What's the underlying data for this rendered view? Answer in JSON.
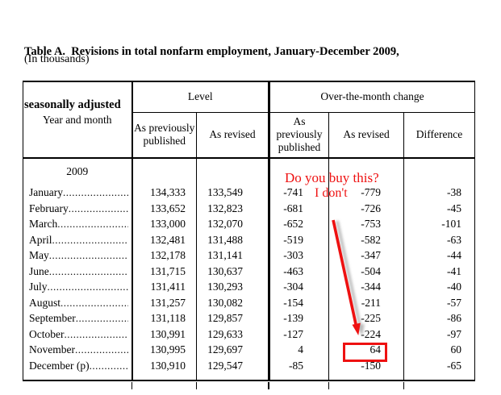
{
  "page": {
    "title_line1": "Table A.  Revisions in total nonfarm employment, January-December 2009,",
    "title_line2": "seasonally adjusted",
    "units_note": "(In thousands)"
  },
  "table": {
    "row_header": "Year and month",
    "groups": {
      "level": "Level",
      "otm": "Over-the-month change"
    },
    "columns": {
      "level_prev": "As previously published",
      "level_rev": "As revised",
      "otm_prev": "As previously published",
      "otm_rev": "As revised",
      "diff": "Difference"
    },
    "year": "2009",
    "rows": [
      {
        "month": "January",
        "level_prev": "134,333",
        "level_rev": "133,549",
        "otm_prev": "-741",
        "otm_rev": "-779",
        "diff": "-38"
      },
      {
        "month": "February",
        "level_prev": "133,652",
        "level_rev": "132,823",
        "otm_prev": "-681",
        "otm_rev": "-726",
        "diff": "-45"
      },
      {
        "month": "March",
        "level_prev": "133,000",
        "level_rev": "132,070",
        "otm_prev": "-652",
        "otm_rev": "-753",
        "diff": "-101"
      },
      {
        "month": "April",
        "level_prev": "132,481",
        "level_rev": "131,488",
        "otm_prev": "-519",
        "otm_rev": "-582",
        "diff": "-63"
      },
      {
        "month": "May",
        "level_prev": "132,178",
        "level_rev": "131,141",
        "otm_prev": "-303",
        "otm_rev": "-347",
        "diff": "-44"
      },
      {
        "month": "June",
        "level_prev": "131,715",
        "level_rev": "130,637",
        "otm_prev": "-463",
        "otm_rev": "-504",
        "diff": "-41"
      },
      {
        "month": "July",
        "level_prev": "131,411",
        "level_rev": "130,293",
        "otm_prev": "-304",
        "otm_rev": "-344",
        "diff": "-40"
      },
      {
        "month": "August",
        "level_prev": "131,257",
        "level_rev": "130,082",
        "otm_prev": "-154",
        "otm_rev": "-211",
        "diff": "-57"
      },
      {
        "month": "September",
        "level_prev": "131,118",
        "level_rev": "129,857",
        "otm_prev": "-139",
        "otm_rev": "-225",
        "diff": "-86"
      },
      {
        "month": "October",
        "level_prev": "130,991",
        "level_rev": "129,633",
        "otm_prev": "-127",
        "otm_rev": "-224",
        "diff": "-97"
      },
      {
        "month": "November",
        "level_prev": "130,995",
        "level_rev": "129,697",
        "otm_prev": "4",
        "otm_rev": "64",
        "diff": "60"
      },
      {
        "month": "December (p)",
        "level_prev": "130,910",
        "level_rev": "129,547",
        "otm_prev": "-85",
        "otm_rev": "-150",
        "diff": "-65"
      }
    ]
  },
  "annotations": {
    "question_text": "Do you buy this?",
    "answer_text": "I don't",
    "boxed_value": "64",
    "color": "#ee1111"
  }
}
